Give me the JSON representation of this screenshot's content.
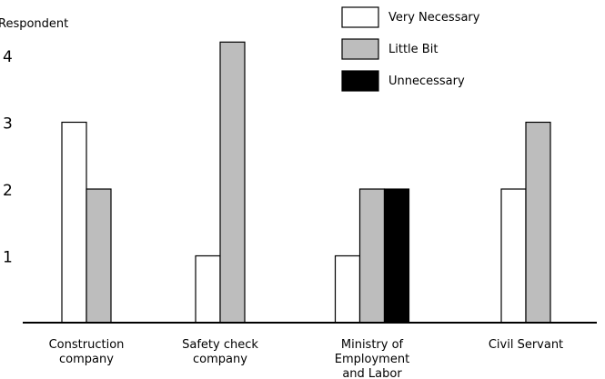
{
  "chart_data": {
    "type": "bar",
    "ylabel": "Respondent",
    "xlabel": "",
    "ylim": [
      0,
      4.5
    ],
    "y_ticks": [
      "1",
      "2",
      "3",
      "4"
    ],
    "grid": false,
    "legend_position": "top-right",
    "categories": [
      [
        "Construction",
        "company"
      ],
      [
        "Safety check",
        "company"
      ],
      [
        "Ministry of",
        "Employment",
        "and Labor"
      ],
      [
        "Civil Servant"
      ]
    ],
    "series": [
      {
        "name": "Very Necessary",
        "color": "#ffffff",
        "values": [
          3,
          1,
          1,
          2
        ]
      },
      {
        "name": "Little Bit",
        "color": "#bdbdbd",
        "values": [
          2,
          4.2,
          2,
          3
        ]
      },
      {
        "name": "Unnecessary",
        "color": "#000000",
        "values": [
          0,
          0,
          2,
          0
        ]
      }
    ]
  }
}
